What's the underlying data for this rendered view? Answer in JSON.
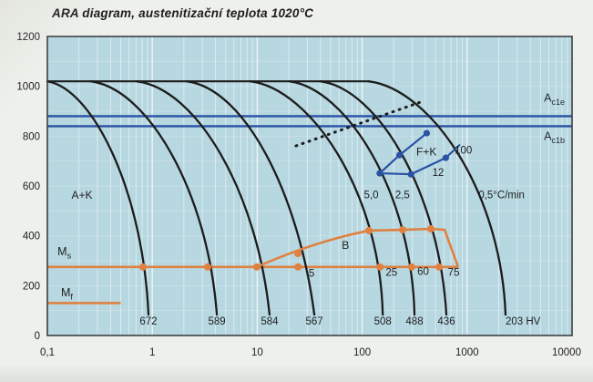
{
  "title": "ARA diagram, austenitizační teplota 1020°C",
  "colors": {
    "page_bg": "#eef0eb",
    "plot_bg": "#b7d7e1",
    "grid": "#ffffff",
    "curve": "#1c1c1c",
    "blue": "#2a52a3",
    "orange": "#e08140",
    "text": "#1f1f1f",
    "border": "#3c4043"
  },
  "chart_data": {
    "type": "line",
    "title": "ARA diagram, austenitizační teplota 1020°C",
    "x_axis": {
      "scale": "log",
      "min": 0.1,
      "max": 10000,
      "tick_values": [
        0.1,
        1,
        10,
        100,
        1000,
        10000
      ],
      "tick_labels": [
        "0,1",
        "1",
        "10",
        "100",
        "1000",
        "10000"
      ]
    },
    "y_axis": {
      "min": 0,
      "max": 1200,
      "tick_values": [
        0,
        200,
        400,
        600,
        800,
        1000,
        1200
      ],
      "tick_labels": [
        "0",
        "200",
        "400",
        "600",
        "800",
        "1000",
        "1200"
      ]
    },
    "austenitization": {
      "temp": 1020,
      "flat_line_t_end": 115
    },
    "ref_lines": [
      {
        "name": "Ac1e",
        "temp": 880,
        "label_main": "A",
        "label_sub": "c1e",
        "label_t": 5400,
        "label_T": 938
      },
      {
        "name": "Ac1b",
        "temp": 840,
        "label_main": "A",
        "label_sub": "c1b",
        "label_t": 5400,
        "label_T": 785
      }
    ],
    "ms_line": {
      "temp": 275,
      "t_start": 0.1,
      "t_end": 822,
      "label_main": "M",
      "label_sub": "s",
      "label_t": 0.125,
      "label_T": 322
    },
    "mf_line": {
      "temp": 130,
      "t_start": 0.1,
      "t_end": 0.5,
      "label_main": "M",
      "label_sub": "f",
      "label_t": 0.135,
      "label_T": 158
    },
    "cooling_curves": [
      {
        "hardness": "672",
        "t_depart": 0.1,
        "t_ms": 0.815,
        "t_end": 0.919,
        "ms_dot": true
      },
      {
        "hardness": "589",
        "t_depart": 0.26,
        "t_ms": 3.37,
        "t_end": 4.12,
        "ms_dot": true
      },
      {
        "hardness": "584",
        "t_depart": 0.71,
        "t_ms": 9.9,
        "t_end": 13.1,
        "ms_dot": true
      },
      {
        "hardness": "567",
        "t_depart": 2.13,
        "t_ms": 24.5,
        "t_end": 35,
        "ms_dot": true
      },
      {
        "hardness": "508",
        "t_depart": 8.6,
        "t_ms": 148,
        "t_end": 157,
        "ms_dot": true
      },
      {
        "hardness": "488",
        "t_depart": 20.3,
        "t_ms": 296,
        "t_end": 315,
        "ms_dot": true
      },
      {
        "hardness": "436",
        "t_depart": 40,
        "t_ms": 540,
        "t_end": 634,
        "ms_dot": true
      },
      {
        "hardness": "203 HV",
        "t_depart": 115,
        "t_ms": 2100,
        "t_end": 2323,
        "ms_dot": false
      }
    ],
    "bainite_region": {
      "label": "B",
      "label_t": 64,
      "label_T": 348,
      "outline": [
        {
          "t": 9.9,
          "T": 275,
          "ctrl": true,
          "ct": 34.9,
          "cT": 377
        },
        {
          "t": 116,
          "T": 421
        },
        {
          "t": 243,
          "T": 424
        },
        {
          "t": 451,
          "T": 428
        },
        {
          "t": 610,
          "T": 424
        },
        {
          "t": 822,
          "T": 275
        }
      ],
      "top_dots": [
        {
          "t": 24.4,
          "T": 329
        },
        {
          "t": 116,
          "T": 421
        },
        {
          "t": 243,
          "T": 424
        },
        {
          "t": 451,
          "T": 428
        }
      ],
      "percent_labels": [
        {
          "text": "5",
          "t": 33,
          "T": 236
        },
        {
          "text": "25",
          "t": 190,
          "T": 240
        },
        {
          "text": "60",
          "t": 381,
          "T": 244
        },
        {
          "text": "75",
          "t": 745,
          "T": 240
        }
      ]
    },
    "ferrite_carbide_region": {
      "label": "F+K",
      "label_t": 328,
      "label_T": 722,
      "upper_line": [
        {
          "t": 147,
          "T": 651
        },
        {
          "t": 227,
          "T": 724
        },
        {
          "t": 412,
          "T": 812
        }
      ],
      "lower_line": [
        {
          "t": 147,
          "T": 651
        },
        {
          "t": 292,
          "T": 647
        },
        {
          "t": 626,
          "T": 713
        },
        {
          "t": 855,
          "T": 766
        }
      ],
      "dots": [
        {
          "t": 147,
          "T": 651
        },
        {
          "t": 227,
          "T": 724
        },
        {
          "t": 412,
          "T": 812
        },
        {
          "t": 292,
          "T": 647
        },
        {
          "t": 626,
          "T": 713
        }
      ],
      "value_labels": [
        {
          "text": "12",
          "t": 466,
          "T": 640
        },
        {
          "text": "100",
          "t": 760,
          "T": 730
        }
      ]
    },
    "dotted_line": {
      "from": {
        "t": 23.4,
        "T": 761
      },
      "to": {
        "t": 362,
        "T": 937
      }
    },
    "annotations": [
      {
        "text": "A+K",
        "t": 0.214,
        "T": 549,
        "size": 12
      },
      {
        "text": "5,0",
        "t": 122,
        "T": 550,
        "size": 11.5
      },
      {
        "text": "2,5",
        "t": 242,
        "T": 550,
        "size": 11.5
      },
      {
        "text": "0,5°C/min",
        "t": 2130,
        "T": 550,
        "size": 11.5
      }
    ]
  }
}
